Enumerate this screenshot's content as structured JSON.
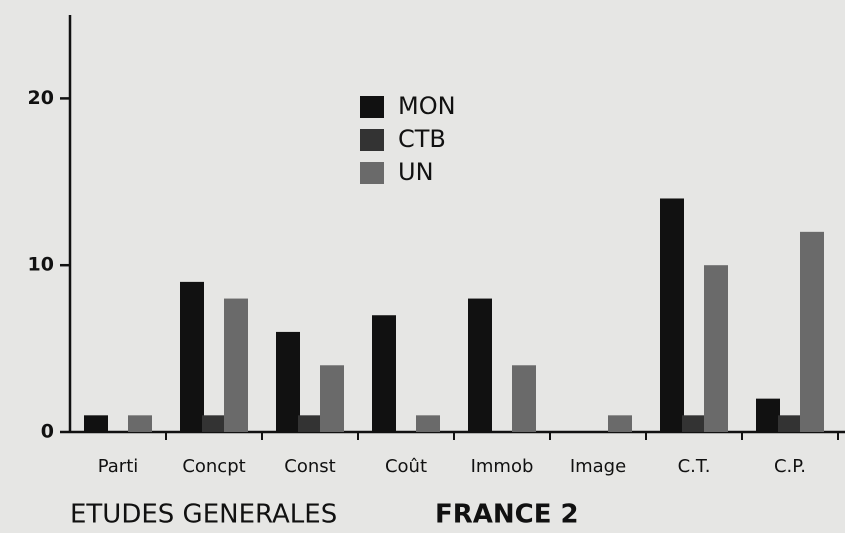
{
  "chart_data": {
    "type": "bar",
    "title": "ETUDES GENERALES",
    "subtitle": "FRANCE 2",
    "categories": [
      "Parti",
      "Concpt",
      "Const",
      "Coût",
      "Immob",
      "Image",
      "C.T.",
      "C.P."
    ],
    "series": [
      {
        "name": "MON",
        "color": "#111111",
        "values": [
          1,
          9,
          6,
          7,
          8,
          0,
          14,
          2
        ]
      },
      {
        "name": "CTB",
        "color": "#333333",
        "values": [
          0,
          1,
          1,
          0,
          0,
          0,
          1,
          1
        ]
      },
      {
        "name": "UN",
        "color": "#6a6a6a",
        "values": [
          1,
          8,
          4,
          1,
          4,
          1,
          10,
          12
        ]
      }
    ],
    "ylim": [
      0,
      25
    ],
    "yticks": [
      0,
      10,
      20
    ]
  }
}
